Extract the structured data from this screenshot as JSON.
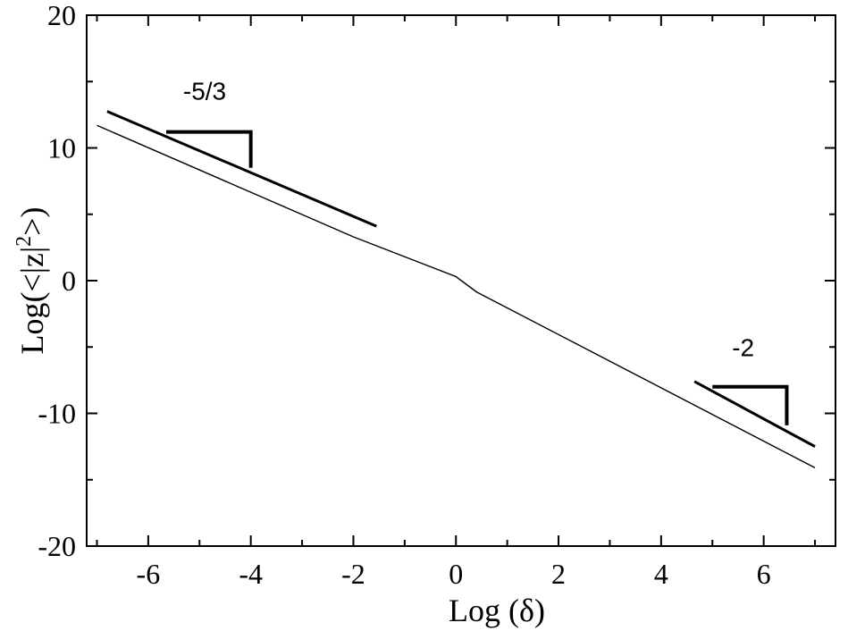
{
  "chart_data": {
    "type": "line",
    "title": "",
    "xlabel": "Log (δ)",
    "ylabel_parts": {
      "prefix": "Log(<|z|",
      "sup": "2",
      "suffix": ">)"
    },
    "xlim": [
      -7.2,
      7.4
    ],
    "ylim": [
      -20,
      20
    ],
    "x_ticks": [
      -6,
      -4,
      -2,
      0,
      2,
      4,
      6
    ],
    "x_tick_labels": [
      "-6",
      "-4",
      "-2",
      "0",
      "2",
      "4",
      "6"
    ],
    "y_ticks": [
      -20,
      -10,
      0,
      10,
      20
    ],
    "y_tick_labels": [
      "-20",
      "-10",
      "0",
      "10",
      "20"
    ],
    "grid": false,
    "series": [
      {
        "style": "thin",
        "x": [
          -7.0,
          -2.0,
          0.0,
          0.4,
          7.0
        ],
        "y": [
          11.7,
          3.3,
          0.3,
          -0.85,
          -14.1
        ]
      },
      {
        "style": "thick",
        "x": [
          -6.8,
          -1.55
        ],
        "y": [
          12.75,
          4.1
        ]
      },
      {
        "style": "thick",
        "x": [
          4.65,
          7.0
        ],
        "y": [
          -7.6,
          -12.5
        ]
      }
    ],
    "annotations": [
      {
        "label": "-5/3",
        "label_at": [
          -4.9,
          14.3
        ],
        "bracket": [
          [
            -5.65,
            11.2
          ],
          [
            -4.0,
            11.2
          ],
          [
            -4.0,
            8.5
          ]
        ]
      },
      {
        "label": "-2",
        "label_at": [
          5.6,
          -5.0
        ],
        "bracket": [
          [
            5.0,
            -8.0
          ],
          [
            6.45,
            -8.0
          ],
          [
            6.45,
            -10.9
          ]
        ]
      }
    ]
  }
}
